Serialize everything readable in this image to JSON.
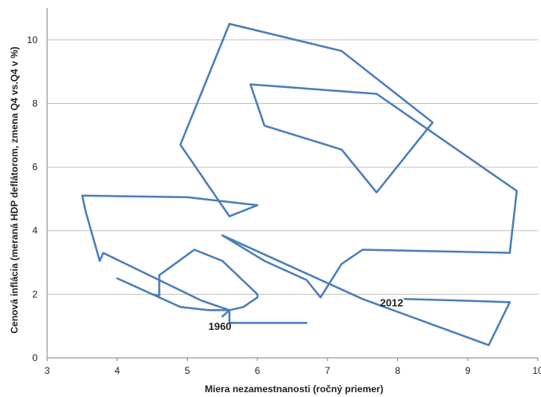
{
  "chart_data": {
    "type": "line",
    "title": "",
    "xlabel": "Miera nezamestnanosti (ročný priemer)",
    "ylabel": "Cenová inflácia (meraná HDP deflátorom, zmena Q4 vs.Q4 v %)",
    "xlim": [
      3,
      10
    ],
    "ylim": [
      0,
      11
    ],
    "x_ticks": [
      "3",
      "4",
      "5",
      "6",
      "7",
      "8",
      "9",
      "10"
    ],
    "y_ticks": [
      "0",
      "2",
      "4",
      "6",
      "8",
      "10"
    ],
    "grid": "horizontal",
    "colors": {
      "line": "#4A7EBB",
      "grid": "#BFBFBF",
      "axis": "#808080"
    },
    "annotations": [
      {
        "text": "1960",
        "x": 5.3,
        "y": 1.0
      },
      {
        "text": "2012",
        "x": 7.75,
        "y": 1.75
      }
    ],
    "series": [
      {
        "x": [
          5.5,
          5.6,
          5.6,
          6.7,
          5.6,
          5.6,
          5.3,
          4.9,
          4.5,
          4.2,
          4.0,
          4.5,
          4.6,
          4.6,
          5.1,
          5.5,
          6.0,
          6.0,
          5.8,
          5.6,
          5.2,
          3.8,
          3.75,
          3.55,
          3.5,
          5.0,
          6.0,
          5.6,
          4.9,
          5.6,
          7.2,
          8.5,
          7.7,
          7.2,
          6.1,
          5.9,
          7.7,
          9.7,
          9.6,
          7.5,
          7.2,
          6.9,
          6.7,
          6.1,
          5.5,
          5.6,
          7.5,
          9.3,
          9.6,
          8.9,
          8.1
        ],
        "y": [
          1.3,
          1.5,
          1.1,
          1.1,
          1.1,
          1.5,
          1.5,
          1.6,
          2.0,
          2.3,
          2.5,
          2.0,
          1.95,
          2.6,
          3.4,
          3.05,
          2.0,
          1.9,
          1.6,
          1.5,
          1.8,
          3.3,
          3.05,
          4.6,
          5.1,
          5.05,
          4.8,
          4.45,
          6.7,
          10.5,
          9.65,
          7.4,
          5.2,
          6.55,
          7.3,
          8.6,
          8.3,
          5.25,
          3.3,
          3.4,
          2.95,
          1.9,
          2.45,
          3.05,
          3.85,
          3.75,
          1.85,
          0.4,
          1.75,
          1.8,
          1.85
        ]
      }
    ]
  }
}
